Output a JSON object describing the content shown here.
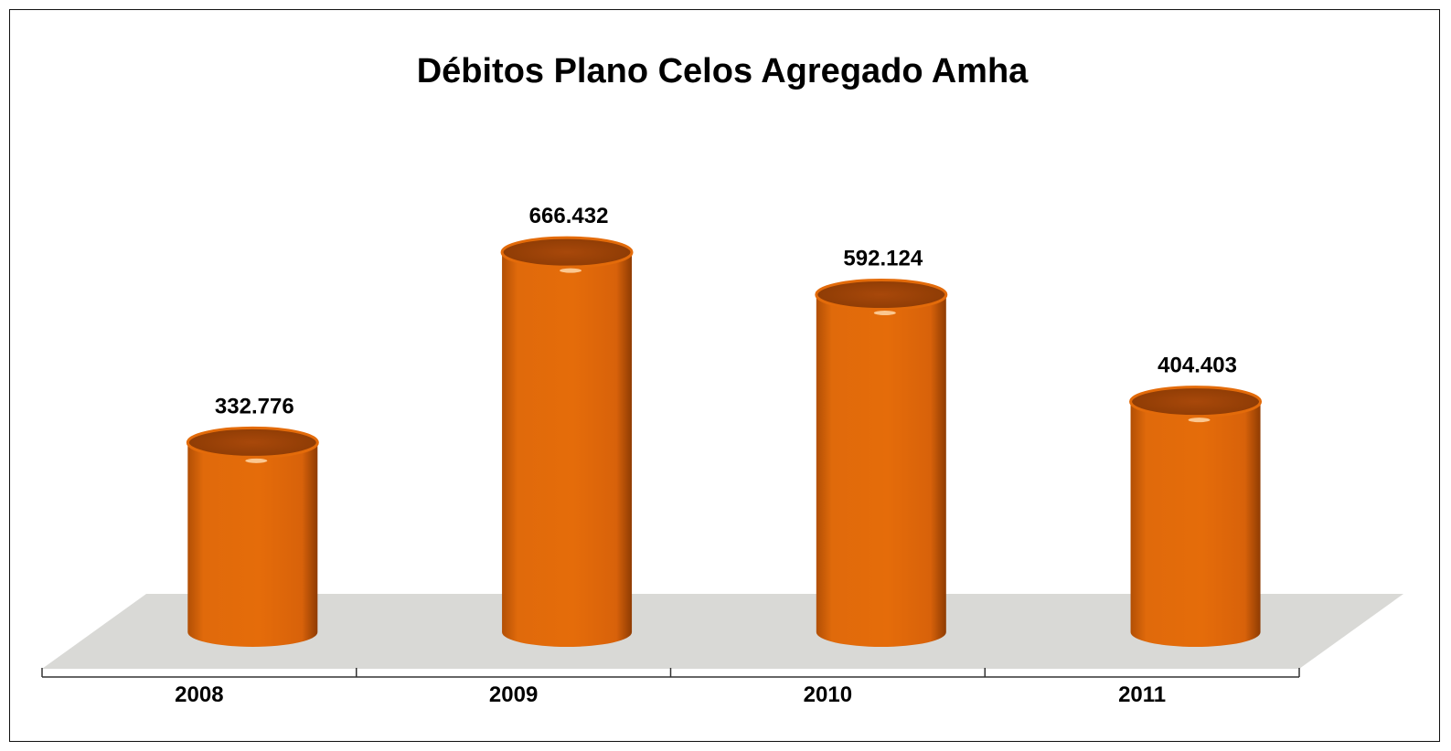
{
  "chart_data": {
    "type": "bar",
    "style": "3d-cylinder",
    "title": "Débitos Plano Celos Agregado Amha",
    "categories": [
      "2008",
      "2009",
      "2010",
      "2011"
    ],
    "values": [
      332776,
      666432,
      592124,
      404403
    ],
    "data_labels": [
      "332.776",
      "666.432",
      "592.124",
      "404.403"
    ],
    "xlabel": "",
    "ylabel": "",
    "ylim": [
      0,
      700000
    ],
    "grid": false,
    "legend": "none",
    "colors": {
      "bar": "#e36b0a",
      "bar_dark": "#9a4204",
      "bar_light": "#f08a2c",
      "floor": "#d9d9d6"
    }
  }
}
